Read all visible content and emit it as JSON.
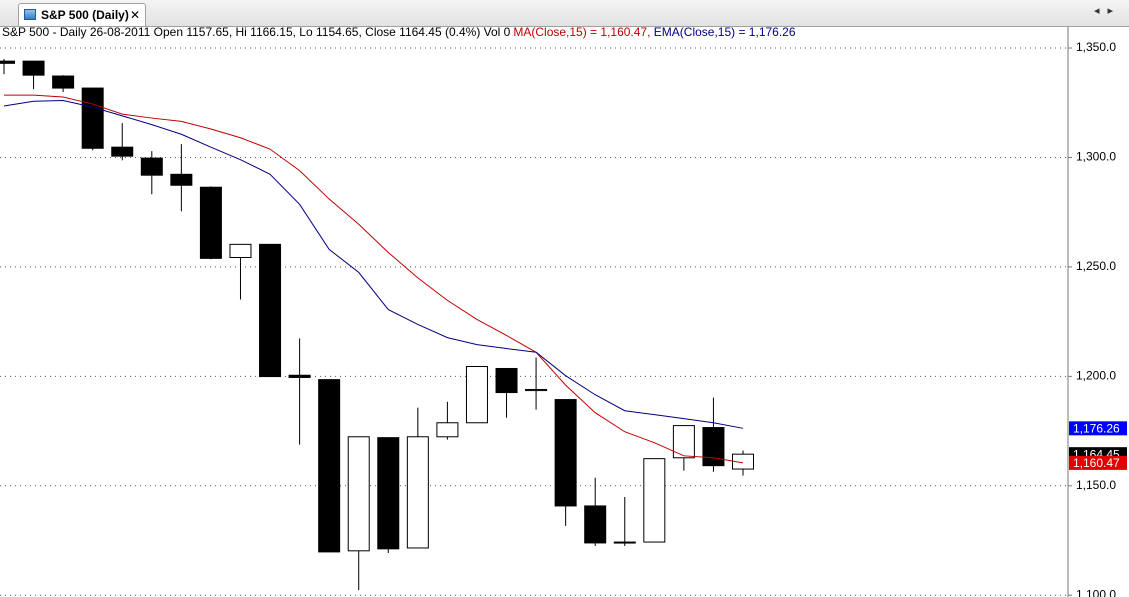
{
  "window": {
    "tab_title": "S&P 500 (Daily)"
  },
  "chart_data": {
    "type": "candlestick",
    "title": "S&P 500 - Daily 26-08-2011 Open 1157.65, Hi 1166.15, Lo 1154.65, Close 1164.45 (0.4%) Vol 0",
    "categories": [
      null,
      null,
      null,
      null,
      null,
      null,
      null,
      null,
      null,
      null,
      null,
      null,
      null,
      null,
      null,
      null,
      null,
      null,
      null,
      null,
      null,
      null,
      null,
      null,
      null,
      null
    ],
    "open": [
      1344.0,
      1344.0,
      1337.2,
      1331.7,
      1304.7,
      1299.7,
      1292.3,
      1286.4,
      1254.3,
      1260.3,
      1200.5,
      1198.5,
      1120.3,
      1172.0,
      1121.6,
      1172.4,
      1178.8,
      1203.6,
      1193.5,
      1189.4,
      1140.8,
      1123.9,
      1124.3,
      1162.8,
      1176.6,
      1157.65
    ],
    "high": [
      1345.0,
      1344.0,
      1337.6,
      1331.7,
      1315.7,
      1302.9,
      1306.1,
      1286.8,
      1260.3,
      1260.3,
      1217.3,
      1198.5,
      1172.4,
      1172.0,
      1185.7,
      1188.4,
      1204.5,
      1203.6,
      1208.6,
      1189.4,
      1153.7,
      1144.9,
      1162.4,
      1177.5,
      1190.3,
      1166.15
    ],
    "low": [
      1338.0,
      1331.2,
      1329.9,
      1303.3,
      1298.7,
      1283.2,
      1275.4,
      1253.5,
      1235.1,
      1199.9,
      1168.8,
      1119.8,
      1102.4,
      1119.3,
      1121.6,
      1171.1,
      1178.8,
      1181.1,
      1184.8,
      1131.7,
      1122.5,
      1122.5,
      1124.3,
      1156.9,
      1156.4,
      1154.65
    ],
    "close": [
      1343.0,
      1337.6,
      1331.7,
      1304.2,
      1300.6,
      1291.9,
      1287.3,
      1253.9,
      1260.3,
      1199.9,
      1199.5,
      1119.8,
      1172.4,
      1121.2,
      1172.4,
      1178.8,
      1204.5,
      1192.6,
      1194.0,
      1140.8,
      1123.9,
      1124.3,
      1162.4,
      1177.5,
      1159.2,
      1164.45
    ],
    "up_color": "#ffffff",
    "down_color": "#000000",
    "series": [
      {
        "name": "MA(Close,15)",
        "header": "MA(Close,15) = 1,160.47,",
        "color": "#c00000",
        "values": [
          1328.5,
          1328.5,
          1327.6,
          1324.4,
          1319.8,
          1318.0,
          1316.5,
          1313.0,
          1309.0,
          1303.8,
          1294.0,
          1281.0,
          1269.5,
          1256.6,
          1245.0,
          1234.7,
          1226.0,
          1218.7,
          1211.0,
          1196.0,
          1183.4,
          1174.7,
          1169.7,
          1163.7,
          1162.8,
          1160.47
        ]
      },
      {
        "name": "EMA(Close,15)",
        "header": " EMA(Close,15) = 1,176.26",
        "color": "#000080",
        "values": [
          1323.5,
          1325.7,
          1326.0,
          1323.0,
          1319.0,
          1315.0,
          1310.6,
          1304.7,
          1299.0,
          1292.3,
          1278.6,
          1258.0,
          1247.5,
          1230.5,
          1223.7,
          1217.7,
          1214.5,
          1212.7,
          1211.0,
          1200.3,
          1191.6,
          1184.3,
          1182.5,
          1180.7,
          1178.8,
          1176.26
        ]
      }
    ],
    "price_tags": [
      {
        "value": 1176.26,
        "label": "1,176.26",
        "color": "#0000ff"
      },
      {
        "value": 1164.45,
        "label": "1,164.45",
        "color": "#000000"
      },
      {
        "value": 1160.47,
        "label": "1,160.47",
        "color": "#e00000"
      }
    ],
    "ylim": [
      1099.2,
      1359.6
    ],
    "yticks": [
      {
        "value": 1100,
        "label": "1,100.0"
      },
      {
        "value": 1150,
        "label": "1,150.0"
      },
      {
        "value": 1200,
        "label": "1,200.0"
      },
      {
        "value": 1250,
        "label": "1,250.0"
      },
      {
        "value": 1300,
        "label": "1,300.0"
      },
      {
        "value": 1350,
        "label": "1,350.0"
      }
    ],
    "grid": true
  }
}
